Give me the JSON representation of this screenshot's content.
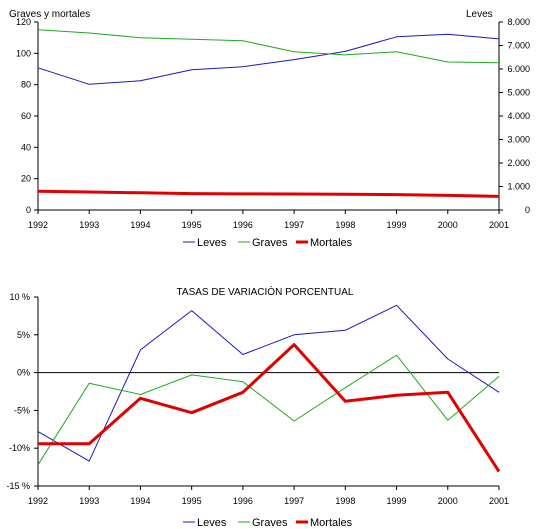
{
  "chart_data": [
    {
      "type": "line",
      "x": [
        1992,
        1993,
        1994,
        1995,
        1996,
        1997,
        1998,
        1999,
        2000,
        2001
      ],
      "left_axis_label": "Graves y mortales",
      "right_axis_label": "Leves",
      "left_ylim": [
        0,
        120
      ],
      "left_ticks": [
        "0",
        "20",
        "40",
        "60",
        "80",
        "100",
        "120"
      ],
      "right_ylim": [
        0,
        8000
      ],
      "right_ticks": [
        "0",
        "1.000",
        "2.000",
        "3.000",
        "4.000",
        "5.000",
        "6.000",
        "7.000",
        "8.000"
      ],
      "series": [
        {
          "name": "Leves",
          "axis": "right",
          "color": "#1a1ab4",
          "width": 1,
          "values": [
            6050,
            5350,
            5500,
            5970,
            6100,
            6400,
            6750,
            7370,
            7480,
            7280
          ]
        },
        {
          "name": "Graves",
          "axis": "left",
          "color": "#22a822",
          "width": 1,
          "values": [
            115,
            113,
            110,
            109,
            108,
            101,
            99,
            101,
            94.5,
            94
          ]
        },
        {
          "name": "Mortales",
          "axis": "left",
          "color": "#e00000",
          "width": 3,
          "values": [
            12,
            11.5,
            11,
            10.5,
            10.3,
            10.2,
            10,
            9.8,
            9.3,
            8.7
          ]
        }
      ],
      "grid": false,
      "legend_position": "bottom"
    },
    {
      "type": "line",
      "title": "TASAS DE VARIACIÓN PORCENTUAL",
      "x": [
        1992,
        1993,
        1994,
        1995,
        1996,
        1997,
        1998,
        1999,
        2000,
        2001
      ],
      "ylim": [
        -15,
        10
      ],
      "y_ticks": [
        "10 %",
        "5%",
        "0%",
        "-5%",
        "-10%",
        "-15 %"
      ],
      "y_tick_values": [
        10,
        5,
        0,
        -5,
        -10,
        -15
      ],
      "series": [
        {
          "name": "Leves",
          "color": "#1a1ab4",
          "width": 1,
          "values": [
            -7.8,
            -11.7,
            3.0,
            8.2,
            2.4,
            5.0,
            5.6,
            8.9,
            1.8,
            -2.6
          ]
        },
        {
          "name": "Graves",
          "color": "#22a822",
          "width": 1,
          "values": [
            -12.2,
            -1.4,
            -2.9,
            -0.3,
            -1.2,
            -6.4,
            -2.0,
            2.3,
            -6.3,
            -0.5
          ]
        },
        {
          "name": "Mortales",
          "color": "#e00000",
          "width": 3,
          "values": [
            -9.4,
            -9.4,
            -3.4,
            -5.3,
            -2.6,
            3.7,
            -3.8,
            -3.0,
            -2.6,
            -13.1
          ]
        }
      ],
      "grid": false,
      "legend_position": "bottom"
    }
  ]
}
